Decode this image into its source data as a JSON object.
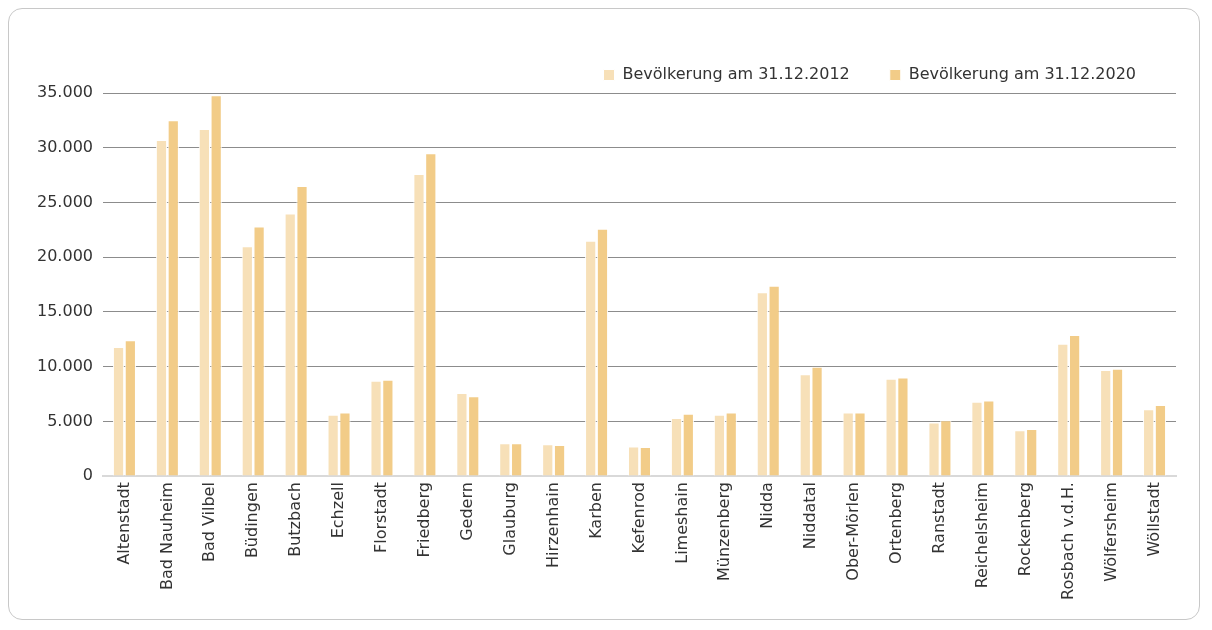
{
  "chart_data": {
    "type": "bar",
    "categories": [
      "Altenstadt",
      "Bad Nauheim",
      "Bad Vilbel",
      "Büdingen",
      "Butzbach",
      "Echzell",
      "Florstadt",
      "Friedberg",
      "Gedern",
      "Glauburg",
      "Hirzenhain",
      "Karben",
      "Kefenrod",
      "Limeshain",
      "Münzenberg",
      "Nidda",
      "Niddatal",
      "Ober-Mörlen",
      "Ortenberg",
      "Ranstadt",
      "Reichelsheim",
      "Rockenberg",
      "Rosbach v.d.H.",
      "Wölfersheim",
      "Wöllstadt"
    ],
    "series": [
      {
        "name": "Bevölkerung am 31.12.2012",
        "color": "#f7e0b8",
        "values": [
          11800,
          30700,
          31700,
          21000,
          24000,
          5600,
          8700,
          27600,
          7600,
          3000,
          2900,
          21500,
          2700,
          5300,
          5600,
          16800,
          9300,
          5800,
          8900,
          4900,
          6800,
          4200,
          12100,
          9700,
          6100
        ]
      },
      {
        "name": "Bevölkerung am 31.12.2020",
        "color": "#f2cc88",
        "values": [
          12400,
          32500,
          34800,
          22800,
          26500,
          5800,
          8800,
          29500,
          7300,
          3000,
          2850,
          22600,
          2650,
          5700,
          5800,
          17400,
          10000,
          5800,
          9000,
          5100,
          6900,
          4300,
          12900,
          9800,
          6500
        ]
      }
    ],
    "ylim": [
      0,
      35000
    ],
    "yticks": [
      0,
      {
        "value": 5000,
        "label": "5.000"
      },
      {
        "value": 10000,
        "label": "10.000"
      },
      {
        "value": 15000,
        "label": "15.000"
      },
      {
        "value": 20000,
        "label": "20.000"
      },
      {
        "value": 25000,
        "label": "25.000"
      },
      {
        "value": 30000,
        "label": "30.000"
      },
      {
        "value": 35000,
        "label": "35.000"
      }
    ],
    "grid": "y",
    "legend": "top right"
  }
}
